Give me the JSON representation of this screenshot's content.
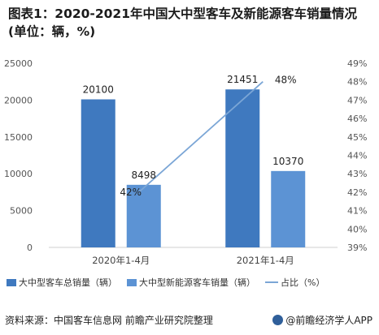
{
  "title": "图表1：2020-2021年中国大中型客车及新能源客车销量情况(单位：辆，%)",
  "source": "资料来源：中国客车信息网 前瞻产业研究院整理",
  "brand": "@前瞻经济学人APP",
  "chart_data": {
    "type": "bar",
    "categories": [
      "2020年1-4月",
      "2021年1-4月"
    ],
    "series": [
      {
        "name": "大中型客车总销量（辆）",
        "type": "bar",
        "axis": "left",
        "color": "#3f79bf",
        "values": [
          20100,
          21451
        ]
      },
      {
        "name": "大中型新能源客车销量（辆）",
        "type": "bar",
        "axis": "left",
        "color": "#5c93d4",
        "values": [
          8498,
          10370
        ]
      },
      {
        "name": "占比（%）",
        "type": "line",
        "axis": "right",
        "color": "#7ba6d6",
        "values": [
          42,
          48
        ]
      }
    ],
    "data_labels": {
      "bar1": [
        "20100",
        "21451"
      ],
      "bar2": [
        "8498",
        "10370"
      ],
      "line": [
        "42%",
        "48%"
      ]
    },
    "y_left": {
      "min": 0,
      "max": 25000,
      "ticks": [
        0,
        5000,
        10000,
        15000,
        20000,
        25000
      ],
      "tick_labels": [
        "0",
        "5000",
        "10000",
        "15000",
        "20000",
        "25000"
      ]
    },
    "y_right": {
      "min": 39,
      "max": 49,
      "ticks": [
        39,
        40,
        41,
        42,
        43,
        44,
        45,
        46,
        47,
        48,
        49
      ],
      "tick_labels": [
        "39%",
        "40%",
        "41%",
        "42%",
        "43%",
        "44%",
        "45%",
        "46%",
        "47%",
        "48%",
        "49%"
      ]
    },
    "grid": false,
    "legend": "bottom"
  }
}
